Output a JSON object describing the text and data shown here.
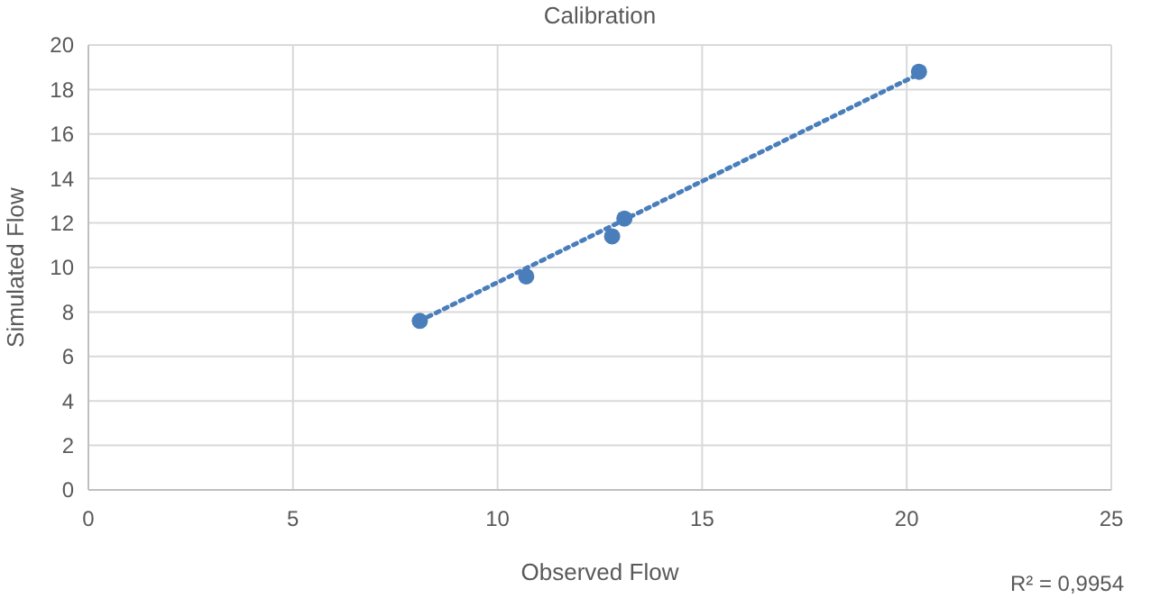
{
  "chart_data": {
    "type": "scatter",
    "title": "Calibration",
    "xlabel": "Observed Flow",
    "ylabel": "Simulated Flow",
    "x": [
      8.1,
      10.7,
      12.8,
      13.1,
      20.3
    ],
    "series": [
      {
        "color": "#4a7ebb",
        "values": [
          7.6,
          9.6,
          11.4,
          12.2,
          18.8
        ],
        "marker": "circle"
      },
      {
        "type": "line",
        "color": "#4a7ebb",
        "x": [
          8.1,
          20.3
        ],
        "values": [
          7.6,
          18.7
        ],
        "line_style": "dotted",
        "marker": "none"
      }
    ],
    "xlim": [
      0,
      25
    ],
    "xticks": [
      0,
      5,
      10,
      15,
      20,
      25
    ],
    "ylim": [
      0,
      20
    ],
    "yticks": [
      0,
      2,
      4,
      6,
      8,
      10,
      12,
      14,
      16,
      18,
      20
    ],
    "grid": true,
    "annotations": [
      "R² = 0,9954"
    ]
  }
}
